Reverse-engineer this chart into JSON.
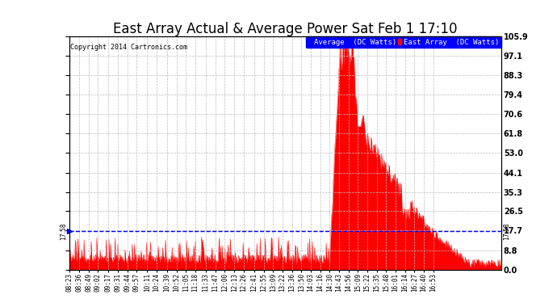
{
  "title": "East Array Actual & Average Power Sat Feb 1 17:10",
  "copyright": "Copyright 2014 Cartronics.com",
  "legend_avg_label": "Average  (DC Watts)",
  "legend_east_label": "East Array  (DC Watts)",
  "avg_value": 17.58,
  "ymax": 105.9,
  "ymin": 0.0,
  "yticks": [
    0.0,
    8.8,
    17.7,
    26.5,
    35.3,
    44.1,
    53.0,
    61.8,
    70.6,
    79.4,
    88.3,
    97.1,
    105.9
  ],
  "background_color": "#ffffff",
  "grid_color": "#bbbbbb",
  "avg_line_color": "#0000ff",
  "east_array_color": "#ff0000",
  "title_fontsize": 12,
  "xtick_labels": [
    "08:23",
    "08:36",
    "08:49",
    "09:02",
    "09:17",
    "09:31",
    "09:44",
    "09:57",
    "10:11",
    "10:24",
    "10:39",
    "10:52",
    "11:05",
    "11:18",
    "11:33",
    "11:47",
    "12:00",
    "12:13",
    "12:26",
    "12:41",
    "12:55",
    "13:09",
    "13:22",
    "13:36",
    "13:50",
    "14:03",
    "14:16",
    "14:30",
    "14:43",
    "14:56",
    "15:09",
    "15:22",
    "15:35",
    "15:48",
    "16:01",
    "16:14",
    "16:27",
    "16:40",
    "16:53"
  ],
  "n_dense": 780,
  "tick_positions": [
    0,
    17,
    34,
    51,
    70,
    87,
    104,
    121,
    140,
    157,
    176,
    193,
    210,
    227,
    246,
    263,
    280,
    297,
    314,
    333,
    350,
    367,
    384,
    401,
    418,
    435,
    452,
    469,
    486,
    503,
    520,
    537,
    554,
    571,
    588,
    605,
    622,
    639,
    656
  ]
}
